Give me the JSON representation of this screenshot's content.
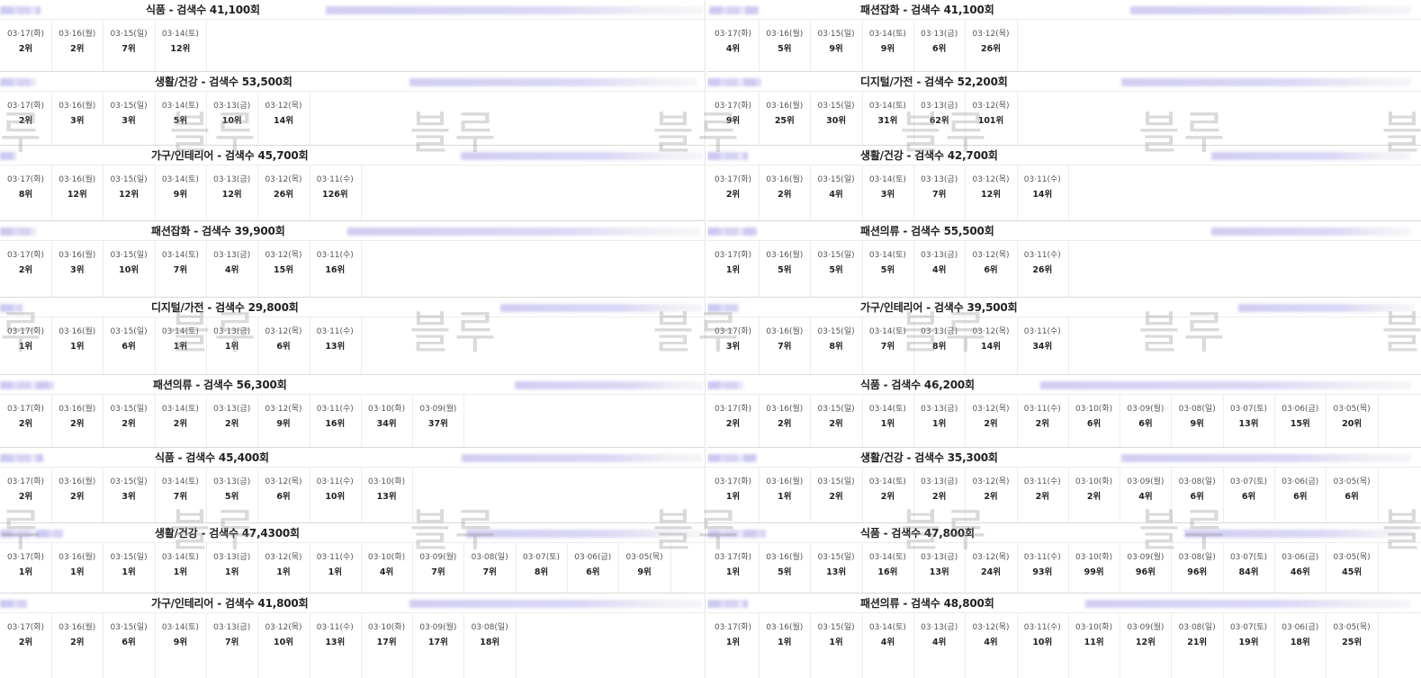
{
  "watermark_text": "블루",
  "left_cards": [
    {
      "title": "식품 - 검색수 41,100회",
      "days": [
        [
          "03·17(화)",
          "2위"
        ],
        [
          "03·16(월)",
          "2위"
        ],
        [
          "03·15(일)",
          "7위"
        ],
        [
          "03·14(토)",
          "12위"
        ]
      ]
    },
    {
      "title": "생활/건강 - 검색수 53,500회",
      "days": [
        [
          "03·17(화)",
          "2위"
        ],
        [
          "03·16(월)",
          "3위"
        ],
        [
          "03·15(일)",
          "3위"
        ],
        [
          "03·14(토)",
          "5위"
        ],
        [
          "03·13(금)",
          "10위"
        ],
        [
          "03·12(목)",
          "14위"
        ]
      ]
    },
    {
      "title": "가구/인테리어 - 검색수 45,700회",
      "days": [
        [
          "03·17(화)",
          "8위"
        ],
        [
          "03·16(월)",
          "12위"
        ],
        [
          "03·15(일)",
          "12위"
        ],
        [
          "03·14(토)",
          "9위"
        ],
        [
          "03·13(금)",
          "12위"
        ],
        [
          "03·12(목)",
          "26위"
        ],
        [
          "03·11(수)",
          "126위"
        ]
      ]
    },
    {
      "title": "패션잡화 - 검색수 39,900회",
      "days": [
        [
          "03·17(화)",
          "2위"
        ],
        [
          "03·16(월)",
          "3위"
        ],
        [
          "03·15(일)",
          "10위"
        ],
        [
          "03·14(토)",
          "7위"
        ],
        [
          "03·13(금)",
          "4위"
        ],
        [
          "03·12(목)",
          "15위"
        ],
        [
          "03·11(수)",
          "16위"
        ]
      ]
    },
    {
      "title": "디지털/가전 - 검색수 29,800회",
      "days": [
        [
          "03·17(화)",
          "1위"
        ],
        [
          "03·16(월)",
          "1위"
        ],
        [
          "03·15(일)",
          "6위"
        ],
        [
          "03·14(토)",
          "1위"
        ],
        [
          "03·13(금)",
          "1위"
        ],
        [
          "03·12(목)",
          "6위"
        ],
        [
          "03·11(수)",
          "13위"
        ]
      ]
    },
    {
      "title": "패션의류 - 검색수 56,300회",
      "days": [
        [
          "03·17(화)",
          "2위"
        ],
        [
          "03·16(월)",
          "2위"
        ],
        [
          "03·15(일)",
          "2위"
        ],
        [
          "03·14(토)",
          "2위"
        ],
        [
          "03·13(금)",
          "2위"
        ],
        [
          "03·12(목)",
          "9위"
        ],
        [
          "03·11(수)",
          "16위"
        ],
        [
          "03·10(화)",
          "34위"
        ],
        [
          "03·09(월)",
          "37위"
        ]
      ]
    },
    {
      "title": "식품 - 검색수 45,400회",
      "days": [
        [
          "03·17(화)",
          "2위"
        ],
        [
          "03·16(월)",
          "2위"
        ],
        [
          "03·15(일)",
          "3위"
        ],
        [
          "03·14(토)",
          "7위"
        ],
        [
          "03·13(금)",
          "5위"
        ],
        [
          "03·12(목)",
          "6위"
        ],
        [
          "03·11(수)",
          "10위"
        ],
        [
          "03·10(화)",
          "13위"
        ]
      ]
    },
    {
      "title": "생활/건강 - 검색수 47,4300회",
      "days": [
        [
          "03·17(화)",
          "1위"
        ],
        [
          "03·16(월)",
          "1위"
        ],
        [
          "03·15(일)",
          "1위"
        ],
        [
          "03·14(토)",
          "1위"
        ],
        [
          "03·13(금)",
          "1위"
        ],
        [
          "03·12(목)",
          "1위"
        ],
        [
          "03·11(수)",
          "1위"
        ],
        [
          "03·10(화)",
          "4위"
        ],
        [
          "03·09(월)",
          "7위"
        ],
        [
          "03·08(일)",
          "7위"
        ],
        [
          "03·07(토)",
          "8위"
        ],
        [
          "03·06(금)",
          "6위"
        ],
        [
          "03·05(목)",
          "9위"
        ]
      ]
    },
    {
      "title": "가구/인테리어 - 검색수 41,800회",
      "days": [
        [
          "03·17(화)",
          "2위"
        ],
        [
          "03·16(월)",
          "2위"
        ],
        [
          "03·15(일)",
          "6위"
        ],
        [
          "03·14(토)",
          "9위"
        ],
        [
          "03·13(금)",
          "7위"
        ],
        [
          "03·12(목)",
          "10위"
        ],
        [
          "03·11(수)",
          "13위"
        ],
        [
          "03·10(화)",
          "17위"
        ],
        [
          "03·09(월)",
          "17위"
        ],
        [
          "03·08(일)",
          "18위"
        ]
      ]
    }
  ],
  "right_cards": [
    {
      "title": "패션잡화 - 검색수 41,100회",
      "days": [
        [
          "03·17(화)",
          "4위"
        ],
        [
          "03·16(월)",
          "5위"
        ],
        [
          "03·15(일)",
          "9위"
        ],
        [
          "03·14(토)",
          "9위"
        ],
        [
          "03·13(금)",
          "6위"
        ],
        [
          "03·12(목)",
          "26위"
        ]
      ]
    },
    {
      "title": "디지털/가전 - 검색수 52,200회",
      "days": [
        [
          "03·17(화)",
          "9위"
        ],
        [
          "03·16(월)",
          "25위"
        ],
        [
          "03·15(일)",
          "30위"
        ],
        [
          "03·14(토)",
          "31위"
        ],
        [
          "03·13(금)",
          "62위"
        ],
        [
          "03·12(목)",
          "101위"
        ]
      ]
    },
    {
      "title": "생활/건강 - 검색수 42,700회",
      "days": [
        [
          "03·17(화)",
          "2위"
        ],
        [
          "03·16(월)",
          "2위"
        ],
        [
          "03·15(일)",
          "4위"
        ],
        [
          "03·14(토)",
          "3위"
        ],
        [
          "03·13(금)",
          "7위"
        ],
        [
          "03·12(목)",
          "12위"
        ],
        [
          "03·11(수)",
          "14위"
        ]
      ]
    },
    {
      "title": "패션의류 - 검색수 55,500회",
      "days": [
        [
          "03·17(화)",
          "1위"
        ],
        [
          "03·16(월)",
          "5위"
        ],
        [
          "03·15(일)",
          "5위"
        ],
        [
          "03·14(토)",
          "5위"
        ],
        [
          "03·13(금)",
          "4위"
        ],
        [
          "03·12(목)",
          "6위"
        ],
        [
          "03·11(수)",
          "26위"
        ]
      ]
    },
    {
      "title": "가구/인테리어 - 검색수 39,500회",
      "days": [
        [
          "03·17(화)",
          "3위"
        ],
        [
          "03·16(월)",
          "7위"
        ],
        [
          "03·15(일)",
          "8위"
        ],
        [
          "03·14(토)",
          "7위"
        ],
        [
          "03·13(금)",
          "8위"
        ],
        [
          "03·12(목)",
          "14위"
        ],
        [
          "03·11(수)",
          "34위"
        ]
      ]
    },
    {
      "title": "식품 - 검색수 46,200회",
      "days": [
        [
          "03·17(화)",
          "2위"
        ],
        [
          "03·16(월)",
          "2위"
        ],
        [
          "03·15(일)",
          "2위"
        ],
        [
          "03·14(토)",
          "1위"
        ],
        [
          "03·13(금)",
          "1위"
        ],
        [
          "03·12(목)",
          "2위"
        ],
        [
          "03·11(수)",
          "2위"
        ],
        [
          "03·10(화)",
          "6위"
        ],
        [
          "03·09(월)",
          "6위"
        ],
        [
          "03·08(일)",
          "9위"
        ],
        [
          "03·07(토)",
          "13위"
        ],
        [
          "03·06(금)",
          "15위"
        ],
        [
          "03·05(목)",
          "20위"
        ]
      ]
    },
    {
      "title": "생활/건강 - 검색수 35,300회",
      "days": [
        [
          "03·17(화)",
          "1위"
        ],
        [
          "03·16(월)",
          "1위"
        ],
        [
          "03·15(일)",
          "2위"
        ],
        [
          "03·14(토)",
          "2위"
        ],
        [
          "03·13(금)",
          "2위"
        ],
        [
          "03·12(목)",
          "2위"
        ],
        [
          "03·11(수)",
          "2위"
        ],
        [
          "03·10(화)",
          "2위"
        ],
        [
          "03·09(월)",
          "4위"
        ],
        [
          "03·08(일)",
          "6위"
        ],
        [
          "03·07(토)",
          "6위"
        ],
        [
          "03·06(금)",
          "6위"
        ],
        [
          "03·05(목)",
          "6위"
        ]
      ]
    },
    {
      "title": "식품 - 검색수 47,800회",
      "days": [
        [
          "03·17(화)",
          "1위"
        ],
        [
          "03·16(월)",
          "5위"
        ],
        [
          "03·15(일)",
          "13위"
        ],
        [
          "03·14(토)",
          "16위"
        ],
        [
          "03·13(금)",
          "13위"
        ],
        [
          "03·12(목)",
          "24위"
        ],
        [
          "03·11(수)",
          "93위"
        ],
        [
          "03·10(화)",
          "99위"
        ],
        [
          "03·09(월)",
          "96위"
        ],
        [
          "03·08(일)",
          "96위"
        ],
        [
          "03·07(토)",
          "84위"
        ],
        [
          "03·06(금)",
          "46위"
        ],
        [
          "03·05(목)",
          "45위"
        ]
      ]
    },
    {
      "title": "패션의류 - 검색수 48,800회",
      "days": [
        [
          "03·17(화)",
          "1위"
        ],
        [
          "03·16(월)",
          "1위"
        ],
        [
          "03·15(일)",
          "1위"
        ],
        [
          "03·14(토)",
          "4위"
        ],
        [
          "03·13(금)",
          "4위"
        ],
        [
          "03·12(목)",
          "4위"
        ],
        [
          "03·11(수)",
          "10위"
        ],
        [
          "03·10(화)",
          "11위"
        ],
        [
          "03·09(월)",
          "12위"
        ],
        [
          "03·08(일)",
          "21위"
        ],
        [
          "03·07(토)",
          "19위"
        ],
        [
          "03·06(금)",
          "18위"
        ],
        [
          "03·05(목)",
          "25위"
        ]
      ]
    }
  ]
}
